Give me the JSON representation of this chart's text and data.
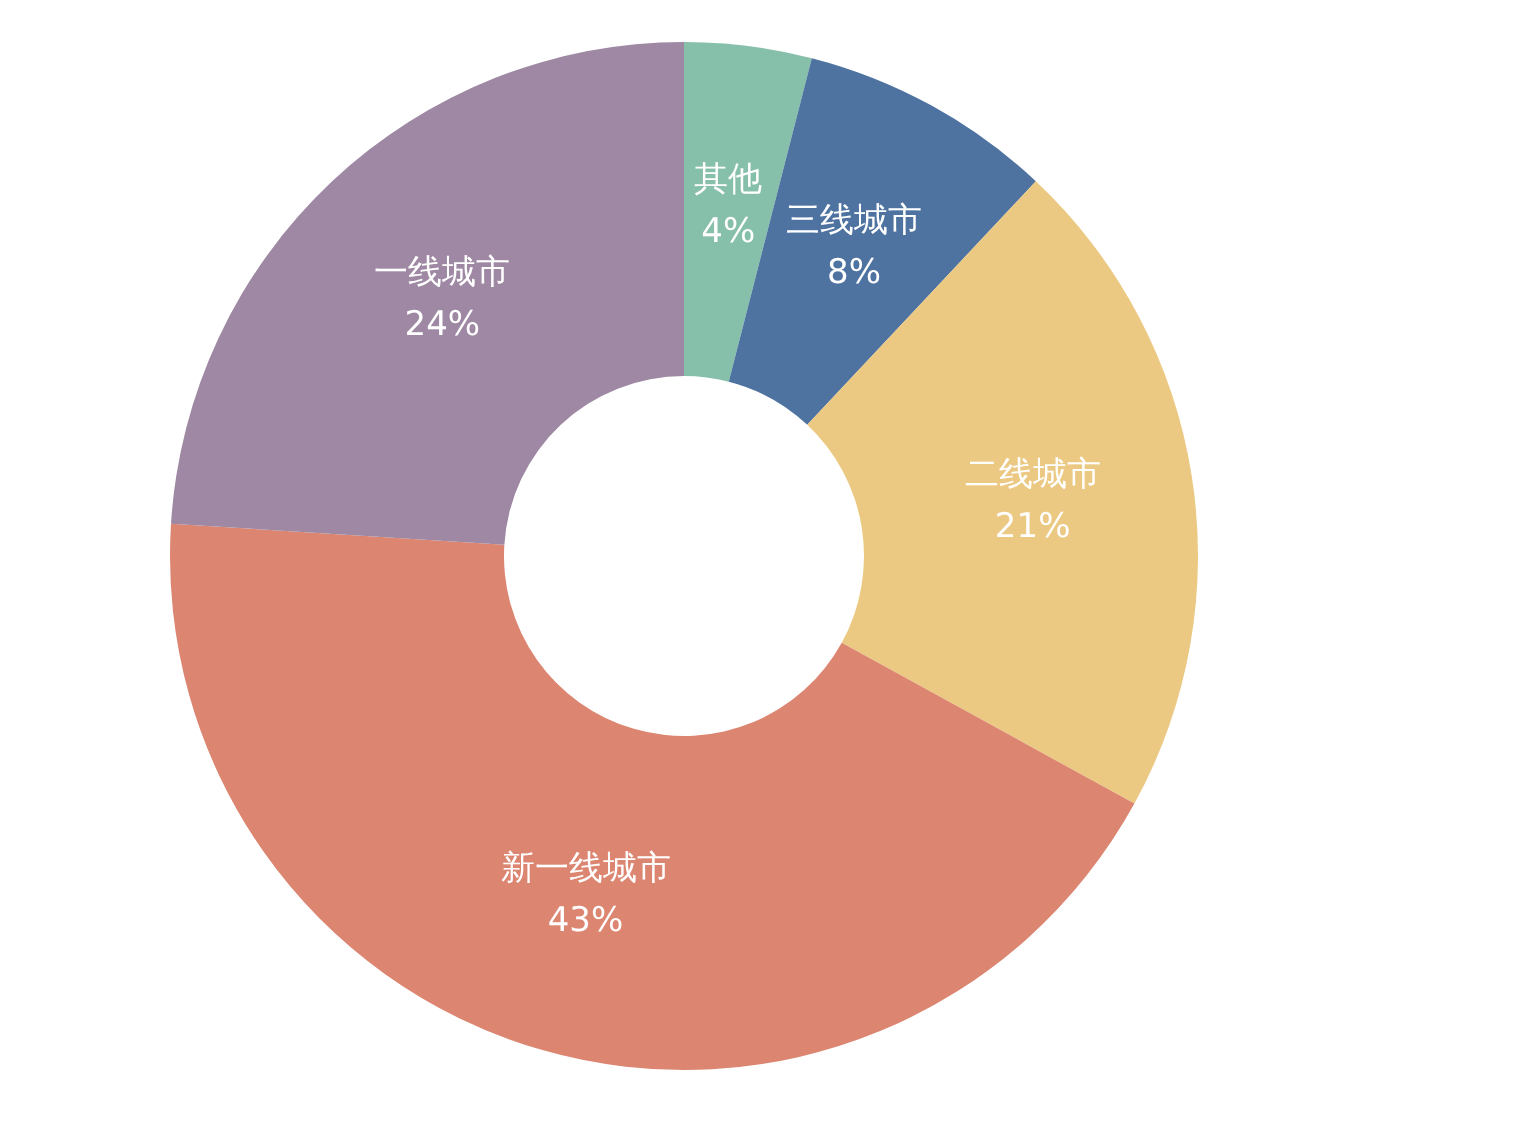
{
  "chart_data": {
    "type": "donut",
    "categories": [
      "其他",
      "三线城市",
      "二线城市",
      "新一线城市",
      "一线城市"
    ],
    "values": [
      4,
      8,
      21,
      43,
      24
    ],
    "colors": [
      "#86bfaa",
      "#4e73a0",
      "#ecc983",
      "#dc8570",
      "#9e88a3"
    ],
    "value_labels": [
      "4%",
      "8%",
      "21%",
      "43%",
      "24%"
    ],
    "legend": false
  }
}
